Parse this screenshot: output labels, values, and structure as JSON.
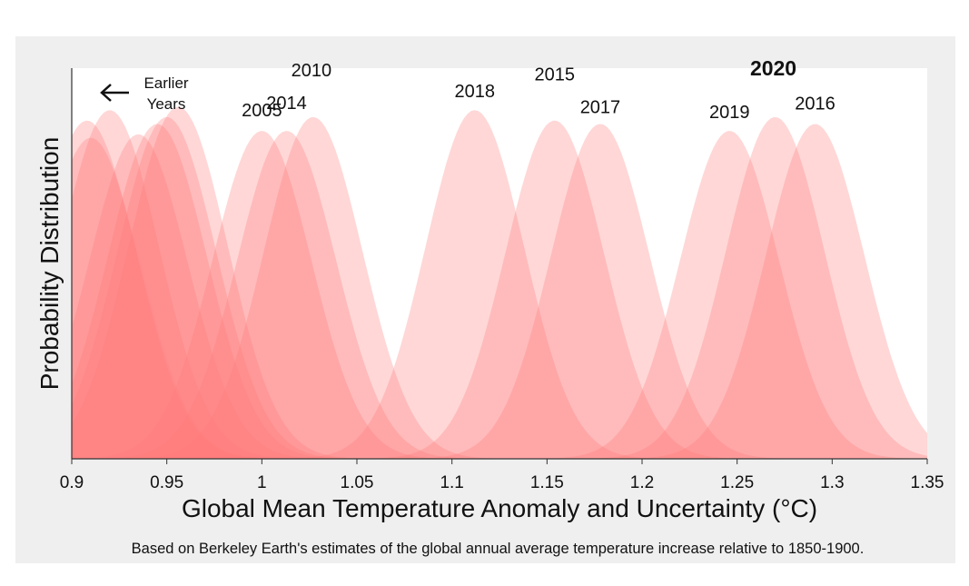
{
  "chart_data": {
    "type": "area",
    "xlabel": "Global Mean Temperature Anomaly and Uncertainty (°C)",
    "ylabel": "Probability Distribution",
    "caption": "Based on Berkeley Earth's estimates of the global annual average temperature increase relative to 1850-1900.",
    "xlim": [
      0.9,
      1.35
    ],
    "x_ticks": [
      "0.9",
      "0.95",
      "1",
      "1.05",
      "1.1",
      "1.15",
      "1.2",
      "1.25",
      "1.3",
      "1.35"
    ],
    "earlier_years_note": [
      "Earlier",
      "Years"
    ],
    "fill_color": "#ff7a7a",
    "series": [
      {
        "name": "2005",
        "mean": 1.0,
        "peak": 0.95
      },
      {
        "name": "2010",
        "mean": 1.027,
        "peak": 0.99
      },
      {
        "name": "2014",
        "mean": 1.013,
        "peak": 0.95
      },
      {
        "name": "2018",
        "mean": 1.112,
        "peak": 1.01
      },
      {
        "name": "2015",
        "mean": 1.154,
        "peak": 0.98
      },
      {
        "name": "2017",
        "mean": 1.178,
        "peak": 0.97
      },
      {
        "name": "2019",
        "mean": 1.246,
        "peak": 0.95
      },
      {
        "name": "2020",
        "mean": 1.27,
        "peak": 0.99,
        "highlight": true
      },
      {
        "name": "2016",
        "mean": 1.291,
        "peak": 0.97
      }
    ],
    "earlier_series": [
      {
        "mean": 0.91,
        "peak": 0.93
      },
      {
        "mean": 0.935,
        "peak": 0.94
      },
      {
        "mean": 0.945,
        "peak": 0.97
      },
      {
        "mean": 0.956,
        "peak": 1.02
      },
      {
        "mean": 0.92,
        "peak": 1.01
      },
      {
        "mean": 0.95,
        "peak": 0.99
      },
      {
        "mean": 0.908,
        "peak": 0.98
      }
    ]
  }
}
